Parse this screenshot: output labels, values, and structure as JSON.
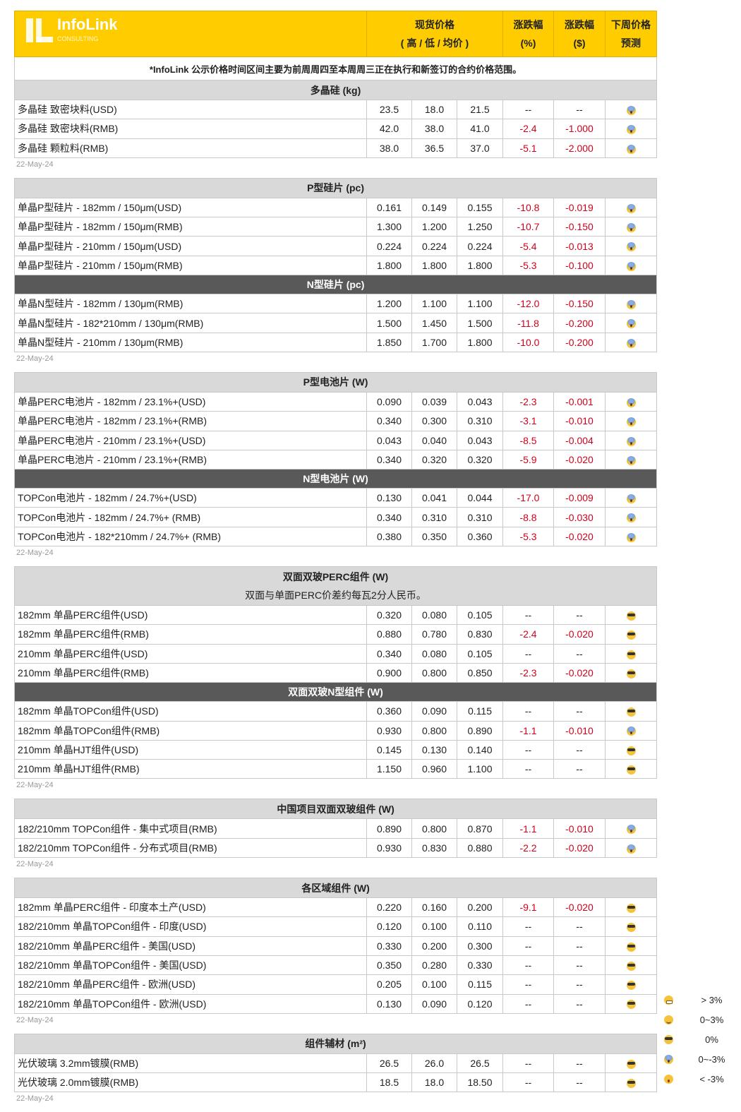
{
  "header": {
    "logo_text": "InfoLink",
    "logo_sub": "CONSULTING",
    "spot_price_l1": "现货价格",
    "spot_price_l2": "( 高 / 低 / 均价 )",
    "change_pct_l1": "涨跌幅",
    "change_pct_l2": "(%)",
    "change_usd_l1": "涨跌幅",
    "change_usd_l2": "($)",
    "forecast_l1": "下周价格",
    "forecast_l2": "预测",
    "brand_color": "#ffcc00"
  },
  "note": "*InfoLink 公示价格时间区间主要为前周周四至本周周三正在执行和新签订的合约价格范围。",
  "colors": {
    "negative": "#d0021b",
    "section_bg": "#d9d9d9",
    "dark_section_bg": "#595959"
  },
  "tables": [
    {
      "date": "22-May-24",
      "blocks": [
        {
          "title": "多晶硅 (kg)",
          "dark": false,
          "rows": [
            [
              "多晶硅 致密块料(USD)",
              "23.5",
              "18.0",
              "21.5",
              "--",
              "--",
              "scream"
            ],
            [
              "多晶硅 致密块料(RMB)",
              "42.0",
              "38.0",
              "41.0",
              "-2.4",
              "-1.000",
              "scream"
            ],
            [
              "多晶硅 颗粒料(RMB)",
              "38.0",
              "36.5",
              "37.0",
              "-5.1",
              "-2.000",
              "scream"
            ]
          ]
        }
      ]
    },
    {
      "date": "22-May-24",
      "blocks": [
        {
          "title": "P型硅片 (pc)",
          "dark": false,
          "rows": [
            [
              "单晶P型硅片 - 182mm / 150μm(USD)",
              "0.161",
              "0.149",
              "0.155",
              "-10.8",
              "-0.019",
              "scream"
            ],
            [
              "单晶P型硅片 - 182mm / 150μm(RMB)",
              "1.300",
              "1.200",
              "1.250",
              "-10.7",
              "-0.150",
              "scream"
            ],
            [
              "单晶P型硅片 - 210mm / 150μm(USD)",
              "0.224",
              "0.224",
              "0.224",
              "-5.4",
              "-0.013",
              "scream"
            ],
            [
              "单晶P型硅片 - 210mm / 150μm(RMB)",
              "1.800",
              "1.800",
              "1.800",
              "-5.3",
              "-0.100",
              "scream"
            ]
          ]
        },
        {
          "title": "N型硅片 (pc)",
          "dark": true,
          "rows": [
            [
              "单晶N型硅片 - 182mm / 130μm(RMB)",
              "1.200",
              "1.100",
              "1.100",
              "-12.0",
              "-0.150",
              "scream"
            ],
            [
              "单晶N型硅片 - 182*210mm / 130μm(RMB)",
              "1.500",
              "1.450",
              "1.500",
              "-11.8",
              "-0.200",
              "scream"
            ],
            [
              "单晶N型硅片 - 210mm / 130μm(RMB)",
              "1.850",
              "1.700",
              "1.800",
              "-10.0",
              "-0.200",
              "scream"
            ]
          ]
        }
      ]
    },
    {
      "date": "22-May-24",
      "blocks": [
        {
          "title": "P型电池片 (W)",
          "dark": false,
          "rows": [
            [
              "单晶PERC电池片 - 182mm / 23.1%+(USD)",
              "0.090",
              "0.039",
              "0.043",
              "-2.3",
              "-0.001",
              "scream"
            ],
            [
              "单晶PERC电池片 - 182mm / 23.1%+(RMB)",
              "0.340",
              "0.300",
              "0.310",
              "-3.1",
              "-0.010",
              "scream"
            ],
            [
              "单晶PERC电池片 - 210mm / 23.1%+(USD)",
              "0.043",
              "0.040",
              "0.043",
              "-8.5",
              "-0.004",
              "scream"
            ],
            [
              "单晶PERC电池片 - 210mm / 23.1%+(RMB)",
              "0.340",
              "0.320",
              "0.320",
              "-5.9",
              "-0.020",
              "scream"
            ]
          ]
        },
        {
          "title": "N型电池片 (W)",
          "dark": true,
          "rows": [
            [
              "TOPCon电池片 - 182mm / 24.7%+(USD)",
              "0.130",
              "0.041",
              "0.044",
              "-17.0",
              "-0.009",
              "scream"
            ],
            [
              "TOPCon电池片 - 182mm / 24.7%+ (RMB)",
              "0.340",
              "0.310",
              "0.310",
              "-8.8",
              "-0.030",
              "scream"
            ],
            [
              "TOPCon电池片 - 182*210mm / 24.7%+ (RMB)",
              "0.380",
              "0.350",
              "0.360",
              "-5.3",
              "-0.020",
              "scream"
            ]
          ]
        }
      ]
    },
    {
      "date": "22-May-24",
      "blocks": [
        {
          "title": "双面双玻PERC组件 (W)",
          "subtitle": "双面与单面PERC价差约每瓦2分人民币。",
          "dark": false,
          "rows": [
            [
              "182mm 单晶PERC组件(USD)",
              "0.320",
              "0.080",
              "0.105",
              "--",
              "--",
              "cool"
            ],
            [
              "182mm 单晶PERC组件(RMB)",
              "0.880",
              "0.780",
              "0.830",
              "-2.4",
              "-0.020",
              "cool"
            ],
            [
              "210mm 单晶PERC组件(USD)",
              "0.340",
              "0.080",
              "0.105",
              "--",
              "--",
              "cool"
            ],
            [
              "210mm 单晶PERC组件(RMB)",
              "0.900",
              "0.800",
              "0.850",
              "-2.3",
              "-0.020",
              "cool"
            ]
          ]
        },
        {
          "title": "双面双玻N型组件 (W)",
          "dark": true,
          "rows": [
            [
              "182mm 单晶TOPCon组件(USD)",
              "0.360",
              "0.090",
              "0.115",
              "--",
              "--",
              "cool"
            ],
            [
              "182mm 单晶TOPCon组件(RMB)",
              "0.930",
              "0.800",
              "0.890",
              "-1.1",
              "-0.010",
              "scream"
            ],
            [
              "210mm 单晶HJT组件(USD)",
              "0.145",
              "0.130",
              "0.140",
              "--",
              "--",
              "cool"
            ],
            [
              "210mm 单晶HJT组件(RMB)",
              "1.150",
              "0.960",
              "1.100",
              "--",
              "--",
              "cool"
            ]
          ]
        }
      ]
    },
    {
      "date": "22-May-24",
      "blocks": [
        {
          "title": "中国项目双面双玻组件 (W)",
          "dark": false,
          "rows": [
            [
              "182/210mm TOPCon组件 - 集中式项目(RMB)",
              "0.890",
              "0.800",
              "0.870",
              "-1.1",
              "-0.010",
              "scream"
            ],
            [
              "182/210mm TOPCon组件 - 分布式项目(RMB)",
              "0.930",
              "0.830",
              "0.880",
              "-2.2",
              "-0.020",
              "scream"
            ]
          ]
        }
      ]
    },
    {
      "date": "22-May-24",
      "blocks": [
        {
          "title": "各区域组件 (W)",
          "dark": false,
          "rows": [
            [
              "182mm 单晶PERC组件 - 印度本土产(USD)",
              "0.220",
              "0.160",
              "0.200",
              "-9.1",
              "-0.020",
              "cool"
            ],
            [
              "182/210mm 单晶TOPCon组件 - 印度(USD)",
              "0.120",
              "0.100",
              "0.110",
              "--",
              "--",
              "cool"
            ],
            [
              "182/210mm 单晶PERC组件 - 美国(USD)",
              "0.330",
              "0.200",
              "0.300",
              "--",
              "--",
              "cool"
            ],
            [
              "182/210mm 单晶TOPCon组件 - 美国(USD)",
              "0.350",
              "0.280",
              "0.330",
              "--",
              "--",
              "cool"
            ],
            [
              "182/210mm 单晶PERC组件 - 欧洲(USD)",
              "0.205",
              "0.100",
              "0.115",
              "--",
              "--",
              "cool"
            ],
            [
              "182/210mm 单晶TOPCon组件 - 欧洲(USD)",
              "0.130",
              "0.090",
              "0.120",
              "--",
              "--",
              "cool"
            ]
          ]
        }
      ]
    },
    {
      "date": "22-May-24",
      "blocks": [
        {
          "title": "组件辅材 (m²)",
          "dark": false,
          "rows": [
            [
              "光伏玻璃 3.2mm镀膜(RMB)",
              "26.5",
              "26.0",
              "26.5",
              "--",
              "--",
              "cool"
            ],
            [
              "光伏玻璃 2.0mm镀膜(RMB)",
              "18.5",
              "18.0",
              "18.50",
              "--",
              "--",
              "cool"
            ]
          ]
        }
      ]
    }
  ],
  "legend": [
    {
      "icon": "grin",
      "label": "> 3%"
    },
    {
      "icon": "smile",
      "label": "0~3%"
    },
    {
      "icon": "cool",
      "label": "0%"
    },
    {
      "icon": "scream",
      "label": "0~-3%"
    },
    {
      "icon": "astonished",
      "label": "< -3%"
    }
  ]
}
